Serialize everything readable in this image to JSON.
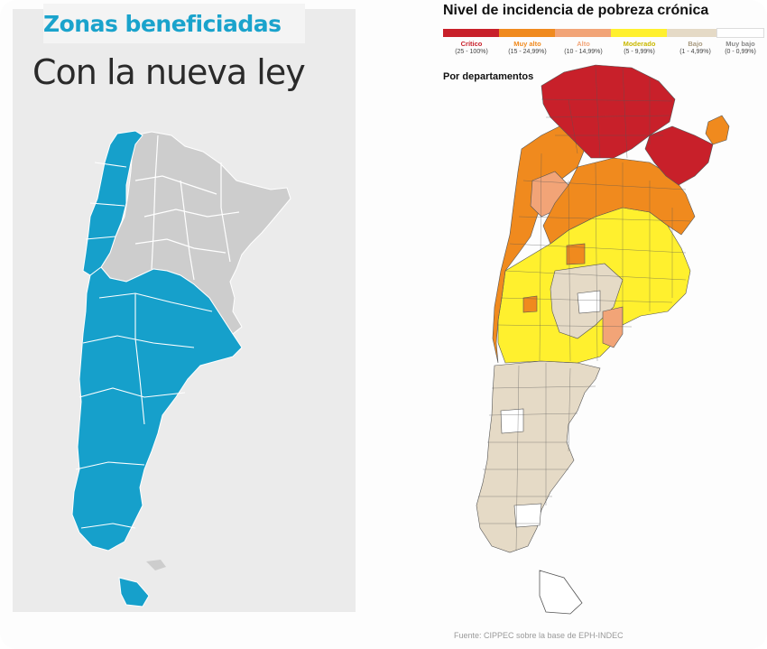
{
  "left": {
    "title": "Zonas beneficiadas",
    "subtitle": "Con la nueva ley",
    "colors": {
      "beneficiada": "#16a0cb",
      "no_beneficiada": "#cdcdcd",
      "background": "#ebebeb"
    }
  },
  "right": {
    "title": "Nivel de incidencia de pobreza crónica",
    "legend": [
      {
        "label": "Crítico",
        "range": "(25 - 100%)",
        "color": "#c8202a"
      },
      {
        "label": "Muy alto",
        "range": "(15 - 24,99%)",
        "color": "#f08a1e"
      },
      {
        "label": "Alto",
        "range": "(10 - 14,99%)",
        "color": "#f2a477"
      },
      {
        "label": "Moderado",
        "range": "(5 - 9,99%)",
        "color": "#fff02e"
      },
      {
        "label": "Bajo",
        "range": "(1 - 4,99%)",
        "color": "#e5dac6"
      },
      {
        "label": "Muy bajo",
        "range": "(0 - 0,99%)",
        "color": "#ffffff"
      }
    ],
    "by_department": "Por departamentos",
    "source": "Fuente: CIPPEC sobre la base de EPH-INDEC"
  }
}
